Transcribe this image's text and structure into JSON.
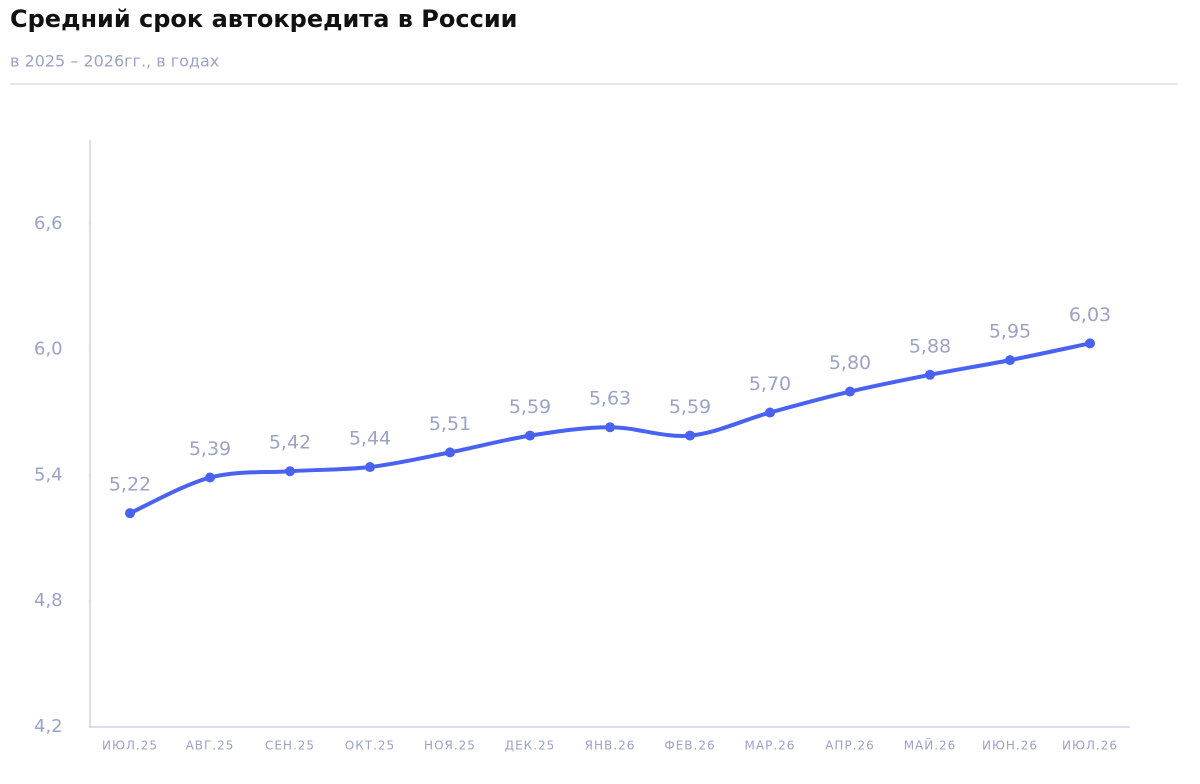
{
  "chart_data": {
    "type": "line",
    "title": "Средний срок автокредита в России",
    "subtitle": "в 2025 – 2026гг., в годах",
    "categories": [
      "ИЮЛ.25",
      "АВГ.25",
      "СЕН.25",
      "ОКТ.25",
      "НОЯ.25",
      "ДЕК.25",
      "ЯНВ.26",
      "ФЕВ.26",
      "МАР.26",
      "АПР.26",
      "МАЙ.26",
      "ИЮН.26",
      "ИЮЛ.26"
    ],
    "series": [
      {
        "color": "#4a62f2",
        "values": [
          5.22,
          5.39,
          5.42,
          5.44,
          5.51,
          5.59,
          5.63,
          5.59,
          5.7,
          5.8,
          5.88,
          5.95,
          6.03
        ],
        "value_labels": [
          "5,22",
          "5,39",
          "5,42",
          "5,44",
          "5,51",
          "5,59",
          "5,63",
          "5,59",
          "5,70",
          "5,80",
          "5,88",
          "5,95",
          "6,03"
        ]
      }
    ],
    "ylim": [
      4.2,
      7.0
    ],
    "yticks": [
      {
        "value": 4.2,
        "label": "4,2"
      },
      {
        "value": 4.8,
        "label": "4,8"
      },
      {
        "value": 5.4,
        "label": "5,4"
      },
      {
        "value": 6.0,
        "label": "6,0"
      },
      {
        "value": 6.6,
        "label": "6,6"
      }
    ]
  }
}
